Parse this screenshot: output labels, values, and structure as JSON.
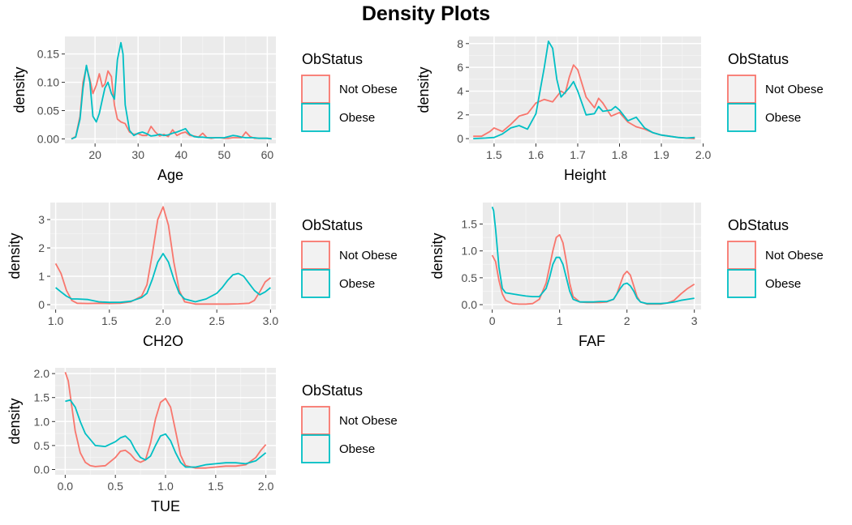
{
  "title": "Density Plots",
  "colors": {
    "panel": "#ebebeb",
    "grid_major": "#ffffff",
    "grid_minor": "#f5f5f5",
    "not_obese": "#F8766D",
    "obese": "#00BFC4",
    "tick": "#333333"
  },
  "chart_data": [
    {
      "type": "line",
      "xlabel": "Age",
      "ylabel": "density",
      "xlim": [
        13,
        62
      ],
      "ylim": [
        -0.008,
        0.181
      ],
      "xticks": [
        20,
        30,
        40,
        50,
        60
      ],
      "xtick_labels": [
        "20",
        "30",
        "40",
        "50",
        "60"
      ],
      "yticks": [
        0,
        0.05,
        0.1,
        0.15
      ],
      "ytick_labels": [
        "0.00",
        "0.05",
        "0.10",
        "0.15"
      ],
      "legend": {
        "title": "ObStatus",
        "entries": [
          "Not Obese",
          "Obese"
        ]
      },
      "series": [
        {
          "name": "Not Obese",
          "x": [
            14.5,
            15.5,
            16.5,
            17.2,
            18,
            18.8,
            19.5,
            20.3,
            21,
            21.7,
            22.3,
            23,
            23.8,
            24.5,
            25.2,
            26,
            27,
            28,
            29,
            30,
            31,
            32,
            33,
            34,
            35,
            36,
            37,
            38,
            39,
            40,
            41,
            42,
            43,
            44,
            45,
            46,
            47,
            48,
            49,
            50,
            51,
            52,
            53,
            54,
            55,
            56,
            57,
            58,
            59,
            60,
            61
          ],
          "y": [
            0.0,
            0.004,
            0.04,
            0.1,
            0.127,
            0.105,
            0.08,
            0.095,
            0.115,
            0.092,
            0.097,
            0.12,
            0.11,
            0.06,
            0.035,
            0.03,
            0.027,
            0.012,
            0.008,
            0.009,
            0.006,
            0.006,
            0.022,
            0.012,
            0.005,
            0.008,
            0.004,
            0.016,
            0.006,
            0.01,
            0.012,
            0.006,
            0.005,
            0.003,
            0.01,
            0.002,
            0.001,
            0.002,
            0.002,
            0.001,
            0.001,
            0.002,
            0.002,
            0.002,
            0.012,
            0.004,
            0.001,
            0.001,
            0.001,
            0.001,
            0.0
          ]
        },
        {
          "name": "Obese",
          "x": [
            14.5,
            15.5,
            16.5,
            17.2,
            18,
            18.8,
            19.5,
            20.3,
            21,
            21.7,
            22.3,
            23,
            23.8,
            24.5,
            25.2,
            26,
            26.5,
            27,
            28,
            29,
            30,
            31,
            32,
            33,
            34,
            35,
            36,
            37,
            38,
            39,
            40,
            41,
            42,
            43,
            44,
            45,
            46,
            47,
            48,
            49,
            50,
            51,
            52,
            53,
            54,
            55,
            56,
            57,
            58,
            59,
            60,
            61
          ],
          "y": [
            0.0,
            0.003,
            0.035,
            0.09,
            0.13,
            0.1,
            0.04,
            0.03,
            0.045,
            0.07,
            0.09,
            0.1,
            0.08,
            0.07,
            0.14,
            0.17,
            0.15,
            0.06,
            0.015,
            0.006,
            0.01,
            0.012,
            0.009,
            0.005,
            0.006,
            0.008,
            0.006,
            0.007,
            0.01,
            0.012,
            0.015,
            0.018,
            0.008,
            0.004,
            0.003,
            0.003,
            0.002,
            0.002,
            0.002,
            0.002,
            0.002,
            0.004,
            0.006,
            0.005,
            0.003,
            0.002,
            0.002,
            0.002,
            0.001,
            0.001,
            0.001,
            0.0
          ]
        }
      ]
    },
    {
      "type": "line",
      "xlabel": "Height",
      "ylabel": "density",
      "xlim": [
        1.44,
        1.995
      ],
      "ylim": [
        -0.4,
        8.6
      ],
      "xticks": [
        1.5,
        1.6,
        1.7,
        1.8,
        1.9,
        2.0
      ],
      "xtick_labels": [
        "1.5",
        "1.6",
        "1.7",
        "1.8",
        "1.9",
        "2.0"
      ],
      "yticks": [
        0,
        2,
        4,
        6,
        8
      ],
      "ytick_labels": [
        "0",
        "2",
        "4",
        "6",
        "8"
      ],
      "legend": {
        "title": "ObStatus",
        "entries": [
          "Not Obese",
          "Obese"
        ]
      },
      "series": [
        {
          "name": "Not Obese",
          "x": [
            1.45,
            1.47,
            1.49,
            1.5,
            1.52,
            1.54,
            1.56,
            1.58,
            1.6,
            1.62,
            1.64,
            1.66,
            1.67,
            1.68,
            1.69,
            1.7,
            1.72,
            1.74,
            1.75,
            1.76,
            1.78,
            1.8,
            1.82,
            1.84,
            1.86,
            1.88,
            1.9,
            1.92,
            1.94,
            1.96,
            1.98
          ],
          "y": [
            0.2,
            0.2,
            0.6,
            0.9,
            0.6,
            1.2,
            1.9,
            2.1,
            3.0,
            3.3,
            3.1,
            4.0,
            3.8,
            5.2,
            6.2,
            5.8,
            3.5,
            2.6,
            3.4,
            3.0,
            1.9,
            2.2,
            1.4,
            1.0,
            0.8,
            0.5,
            0.3,
            0.2,
            0.1,
            0.05,
            0.0
          ]
        },
        {
          "name": "Obese",
          "x": [
            1.45,
            1.48,
            1.5,
            1.52,
            1.54,
            1.56,
            1.58,
            1.6,
            1.62,
            1.63,
            1.64,
            1.65,
            1.66,
            1.68,
            1.69,
            1.7,
            1.72,
            1.74,
            1.75,
            1.76,
            1.78,
            1.79,
            1.8,
            1.82,
            1.84,
            1.86,
            1.88,
            1.9,
            1.92,
            1.94,
            1.96,
            1.98
          ],
          "y": [
            0.0,
            0.05,
            0.1,
            0.4,
            0.9,
            1.1,
            0.8,
            2.1,
            6.0,
            8.2,
            7.6,
            5.0,
            3.5,
            4.3,
            4.8,
            4.0,
            2.0,
            2.1,
            2.7,
            2.3,
            2.4,
            2.7,
            2.4,
            1.5,
            1.8,
            0.9,
            0.5,
            0.3,
            0.2,
            0.1,
            0.05,
            0.1
          ]
        }
      ]
    },
    {
      "type": "line",
      "xlabel": "CH2O",
      "ylabel": "density",
      "xlim": [
        0.95,
        3.05
      ],
      "ylim": [
        -0.17,
        3.6
      ],
      "xticks": [
        1.0,
        1.5,
        2.0,
        2.5,
        3.0
      ],
      "xtick_labels": [
        "1.0",
        "1.5",
        "2.0",
        "2.5",
        "3.0"
      ],
      "yticks": [
        0,
        1,
        2,
        3
      ],
      "ytick_labels": [
        "0",
        "1",
        "2",
        "3"
      ],
      "legend": {
        "title": "ObStatus",
        "entries": [
          "Not Obese",
          "Obese"
        ]
      },
      "series": [
        {
          "name": "Not Obese",
          "x": [
            1.0,
            1.05,
            1.1,
            1.15,
            1.2,
            1.3,
            1.4,
            1.5,
            1.6,
            1.7,
            1.8,
            1.85,
            1.9,
            1.95,
            2.0,
            2.05,
            2.1,
            2.15,
            2.2,
            2.3,
            2.4,
            2.5,
            2.6,
            2.7,
            2.8,
            2.85,
            2.9,
            2.95,
            3.0
          ],
          "y": [
            1.45,
            1.1,
            0.5,
            0.15,
            0.05,
            0.04,
            0.05,
            0.04,
            0.05,
            0.1,
            0.3,
            0.7,
            1.8,
            3.0,
            3.45,
            2.8,
            1.5,
            0.5,
            0.1,
            0.02,
            0.02,
            0.02,
            0.02,
            0.03,
            0.05,
            0.15,
            0.45,
            0.8,
            0.95
          ]
        },
        {
          "name": "Obese",
          "x": [
            1.0,
            1.05,
            1.1,
            1.15,
            1.2,
            1.3,
            1.4,
            1.5,
            1.6,
            1.7,
            1.8,
            1.85,
            1.9,
            1.95,
            2.0,
            2.05,
            2.1,
            2.15,
            2.2,
            2.3,
            2.4,
            2.5,
            2.55,
            2.6,
            2.65,
            2.7,
            2.75,
            2.8,
            2.85,
            2.9,
            2.95,
            3.0
          ],
          "y": [
            0.6,
            0.45,
            0.3,
            0.2,
            0.2,
            0.18,
            0.1,
            0.08,
            0.08,
            0.12,
            0.25,
            0.4,
            0.9,
            1.5,
            1.8,
            1.5,
            0.9,
            0.4,
            0.2,
            0.1,
            0.2,
            0.4,
            0.6,
            0.85,
            1.05,
            1.1,
            1.0,
            0.75,
            0.5,
            0.35,
            0.45,
            0.6
          ]
        }
      ]
    },
    {
      "type": "line",
      "xlabel": "FAF",
      "ylabel": "density",
      "xlim": [
        -0.14,
        3.1
      ],
      "ylim": [
        -0.09,
        1.9
      ],
      "xticks": [
        0,
        1,
        2,
        3
      ],
      "xtick_labels": [
        "0",
        "1",
        "2",
        "3"
      ],
      "yticks": [
        0,
        0.5,
        1.0,
        1.5
      ],
      "ytick_labels": [
        "0.0",
        "0.5",
        "1.0",
        "1.5"
      ],
      "legend": {
        "title": "ObStatus",
        "entries": [
          "Not Obese",
          "Obese"
        ]
      },
      "series": [
        {
          "name": "Not Obese",
          "x": [
            0.0,
            0.05,
            0.1,
            0.15,
            0.2,
            0.3,
            0.4,
            0.5,
            0.6,
            0.7,
            0.8,
            0.85,
            0.9,
            0.95,
            1.0,
            1.05,
            1.1,
            1.15,
            1.2,
            1.3,
            1.4,
            1.5,
            1.6,
            1.7,
            1.8,
            1.85,
            1.9,
            1.95,
            2.0,
            2.05,
            2.1,
            2.15,
            2.2,
            2.3,
            2.4,
            2.5,
            2.6,
            2.7,
            2.8,
            2.9,
            3.0
          ],
          "y": [
            0.92,
            0.8,
            0.45,
            0.2,
            0.08,
            0.02,
            0.01,
            0.01,
            0.02,
            0.1,
            0.4,
            0.7,
            1.0,
            1.25,
            1.3,
            1.15,
            0.8,
            0.4,
            0.15,
            0.05,
            0.04,
            0.04,
            0.04,
            0.05,
            0.1,
            0.2,
            0.38,
            0.55,
            0.62,
            0.55,
            0.35,
            0.15,
            0.05,
            0.01,
            0.01,
            0.01,
            0.03,
            0.08,
            0.2,
            0.3,
            0.38
          ]
        },
        {
          "name": "Obese",
          "x": [
            0.0,
            0.02,
            0.05,
            0.1,
            0.15,
            0.2,
            0.3,
            0.4,
            0.5,
            0.6,
            0.7,
            0.8,
            0.85,
            0.9,
            0.95,
            1.0,
            1.05,
            1.1,
            1.15,
            1.2,
            1.3,
            1.4,
            1.5,
            1.6,
            1.7,
            1.8,
            1.85,
            1.9,
            1.95,
            2.0,
            2.05,
            2.1,
            2.15,
            2.2,
            2.3,
            2.4,
            2.5,
            2.6,
            2.7,
            2.8,
            2.9,
            3.0
          ],
          "y": [
            1.82,
            1.75,
            1.4,
            0.7,
            0.3,
            0.22,
            0.2,
            0.18,
            0.16,
            0.15,
            0.15,
            0.3,
            0.5,
            0.75,
            0.88,
            0.88,
            0.75,
            0.5,
            0.25,
            0.1,
            0.05,
            0.05,
            0.05,
            0.06,
            0.06,
            0.1,
            0.2,
            0.3,
            0.38,
            0.4,
            0.35,
            0.25,
            0.12,
            0.05,
            0.02,
            0.02,
            0.02,
            0.03,
            0.05,
            0.08,
            0.1,
            0.12
          ]
        }
      ]
    },
    {
      "type": "line",
      "xlabel": "TUE",
      "ylabel": "density",
      "xlim": [
        -0.1,
        2.1
      ],
      "ylim": [
        -0.11,
        2.12
      ],
      "xticks": [
        0,
        0.5,
        1.0,
        1.5,
        2.0
      ],
      "xtick_labels": [
        "0.0",
        "0.5",
        "1.0",
        "1.5",
        "2.0"
      ],
      "yticks": [
        0,
        0.5,
        1.0,
        1.5,
        2.0
      ],
      "ytick_labels": [
        "0.0",
        "0.5",
        "1.0",
        "1.5",
        "2.0"
      ],
      "legend": {
        "title": "ObStatus",
        "entries": [
          "Not Obese",
          "Obese"
        ]
      },
      "series": [
        {
          "name": "Not Obese",
          "x": [
            0.0,
            0.03,
            0.06,
            0.1,
            0.15,
            0.2,
            0.25,
            0.3,
            0.4,
            0.5,
            0.55,
            0.6,
            0.65,
            0.7,
            0.75,
            0.8,
            0.85,
            0.9,
            0.95,
            1.0,
            1.05,
            1.1,
            1.15,
            1.2,
            1.3,
            1.4,
            1.5,
            1.6,
            1.7,
            1.8,
            1.9,
            1.95,
            2.0
          ],
          "y": [
            2.03,
            1.85,
            1.4,
            0.8,
            0.35,
            0.15,
            0.08,
            0.06,
            0.08,
            0.25,
            0.38,
            0.4,
            0.32,
            0.2,
            0.15,
            0.2,
            0.55,
            1.05,
            1.4,
            1.48,
            1.3,
            0.8,
            0.3,
            0.08,
            0.03,
            0.03,
            0.05,
            0.07,
            0.07,
            0.1,
            0.25,
            0.4,
            0.52
          ]
        },
        {
          "name": "Obese",
          "x": [
            0.0,
            0.05,
            0.1,
            0.15,
            0.2,
            0.3,
            0.4,
            0.5,
            0.55,
            0.6,
            0.65,
            0.7,
            0.75,
            0.8,
            0.85,
            0.9,
            0.95,
            1.0,
            1.05,
            1.1,
            1.15,
            1.2,
            1.3,
            1.4,
            1.5,
            1.6,
            1.7,
            1.8,
            1.9,
            2.0
          ],
          "y": [
            1.42,
            1.45,
            1.3,
            1.0,
            0.75,
            0.5,
            0.48,
            0.58,
            0.66,
            0.7,
            0.6,
            0.4,
            0.25,
            0.2,
            0.28,
            0.5,
            0.7,
            0.74,
            0.6,
            0.35,
            0.15,
            0.05,
            0.05,
            0.1,
            0.12,
            0.14,
            0.14,
            0.12,
            0.18,
            0.35
          ]
        }
      ]
    }
  ]
}
